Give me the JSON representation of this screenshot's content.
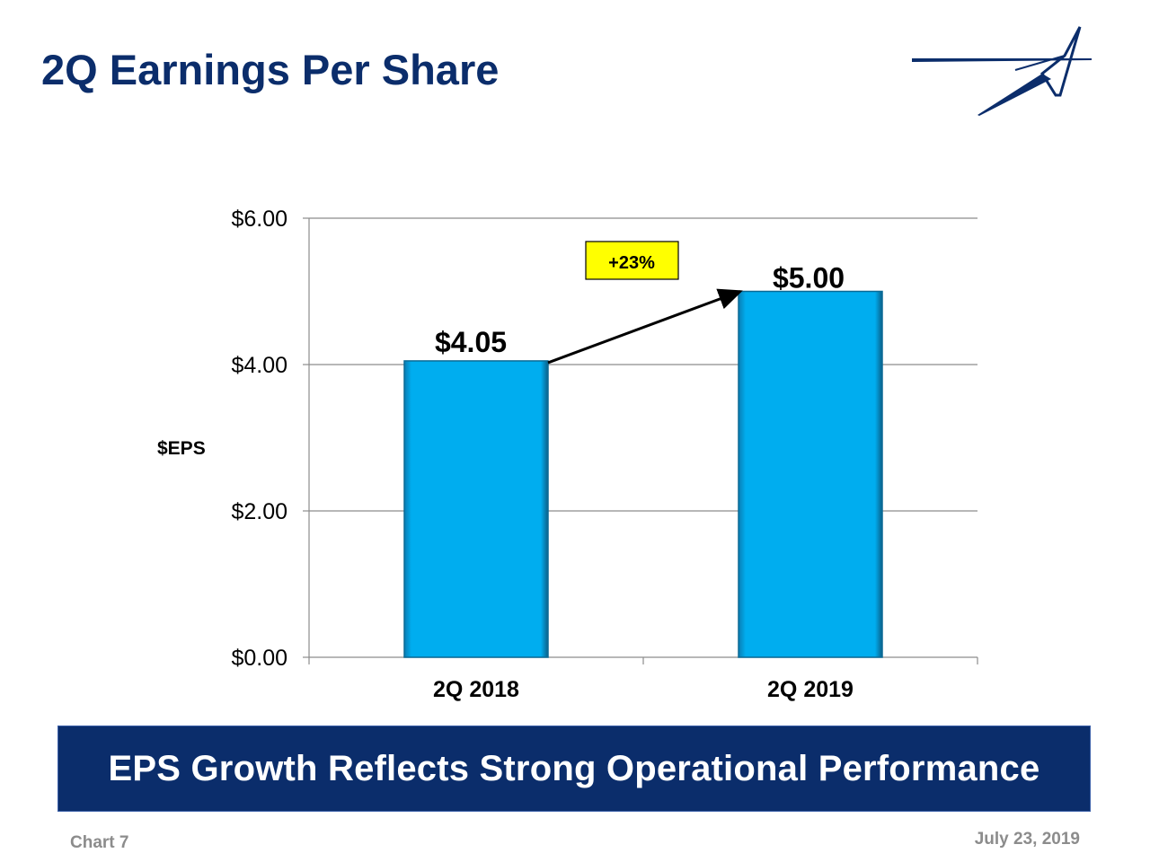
{
  "title": "2Q Earnings Per Share",
  "banner": "EPS Growth Reflects Strong Operational Performance",
  "footer": {
    "left": "Chart 7",
    "right": "July 23, 2019"
  },
  "colors": {
    "title": "#0b2d6b",
    "bar": "#00adef",
    "bar_edge": "#0a6a96",
    "callout_bg": "#ffff00",
    "banner_bg": "#0b2d6b"
  },
  "chart_data": {
    "type": "bar",
    "title": "",
    "ylabel": "$EPS",
    "xlabel": "",
    "categories": [
      "2Q 2018",
      "2Q 2019"
    ],
    "values": [
      4.05,
      5.0
    ],
    "value_labels": [
      "$4.05",
      "$5.00"
    ],
    "ylim": [
      0,
      6
    ],
    "yticks": [
      0,
      2,
      4,
      6
    ],
    "ytick_labels": [
      "$0.00",
      "$2.00",
      "$4.00",
      "$6.00"
    ],
    "grid": true,
    "annotation": {
      "text": "+23%",
      "from_category": "2Q 2018",
      "to_category": "2Q 2019"
    }
  }
}
